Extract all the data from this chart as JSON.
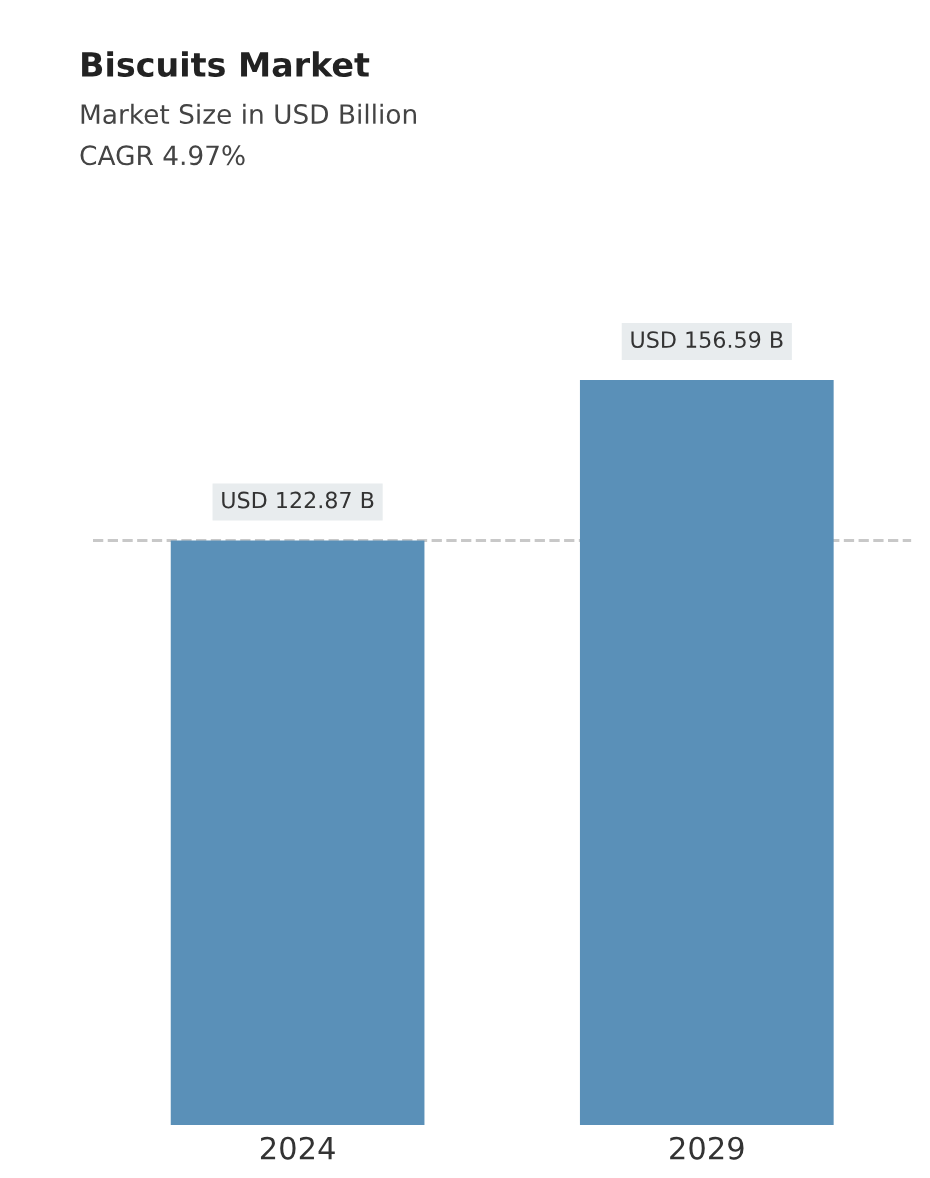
{
  "chart_data": {
    "type": "bar",
    "title": "Biscuits Market",
    "subtitle": "Market Size in USD Billion",
    "annotations": [
      "CAGR 4.97%"
    ],
    "categories": [
      "2024",
      "2029"
    ],
    "values": [
      122.87,
      156.59
    ],
    "value_labels": [
      "USD 122.87 B",
      "USD 156.59 B"
    ],
    "color": "#5a90b8",
    "ref_lines": [
      {
        "axis": "y",
        "value": 122.87,
        "color": "#c8c8c8",
        "line_style": "dashed"
      }
    ],
    "grid": false,
    "legend": false
  }
}
